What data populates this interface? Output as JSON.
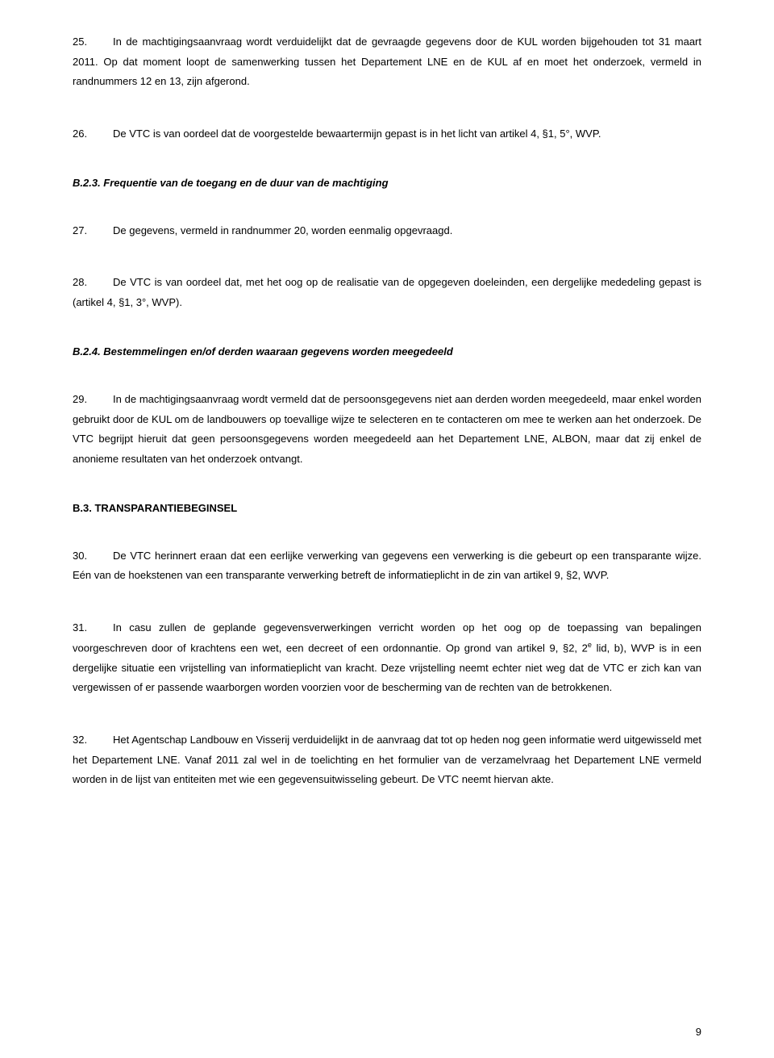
{
  "para25": {
    "num": "25.",
    "text": "In de machtigingsaanvraag wordt verduidelijkt dat de gevraagde gegevens door de KUL worden bijgehouden tot 31 maart 2011. Op dat moment loopt de samenwerking tussen het Departement LNE en de KUL af en moet het onderzoek, vermeld in randnummers 12 en 13, zijn afgerond."
  },
  "para26": {
    "num": "26.",
    "text": "De VTC is van oordeel dat de voorgestelde bewaartermijn gepast is in het licht van artikel 4, §1, 5°, WVP."
  },
  "headingB23": "B.2.3. Frequentie van de toegang en de duur van de machtiging",
  "para27": {
    "num": "27.",
    "text": "De gegevens, vermeld in randnummer 20, worden eenmalig opgevraagd."
  },
  "para28": {
    "num": "28.",
    "text": "De VTC is van oordeel dat, met het oog op de realisatie van de opgegeven doeleinden, een dergelijke mededeling gepast is (artikel 4, §1, 3°, WVP)."
  },
  "headingB24": "B.2.4. Bestemmelingen en/of derden waaraan gegevens worden meegedeeld",
  "para29": {
    "num": "29.",
    "text": "In de machtigingsaanvraag wordt vermeld dat de persoonsgegevens niet aan derden worden meegedeeld, maar enkel worden gebruikt door de KUL om de landbouwers op toevallige wijze te selecteren en te contacteren om mee te werken aan het onderzoek. De VTC begrijpt hieruit dat geen persoonsgegevens worden meegedeeld aan het Departement LNE, ALBON, maar dat zij enkel de anonieme resultaten van het onderzoek ontvangt."
  },
  "headingB3": "B.3. TRANSPARANTIEBEGINSEL",
  "para30": {
    "num": "30.",
    "text": "De VTC herinnert eraan dat een eerlijke verwerking van gegevens een verwerking is die gebeurt op een transparante wijze. Eén van de hoekstenen van een transparante verwerking betreft de informatieplicht in de zin van artikel 9, §2, WVP."
  },
  "para31": {
    "num": "31.",
    "text1": "In casu zullen de geplande gegevensverwerkingen verricht worden op het oog op de toepassing van bepalingen voorgeschreven door of krachtens een wet, een decreet of een ordonnantie. Op grond van artikel 9, §2, 2",
    "sup": "e",
    "text2": " lid, b), WVP is in een dergelijke situatie een vrijstelling van informatieplicht van kracht. Deze vrijstelling neemt echter niet weg dat de VTC er zich kan van vergewissen of er passende waarborgen worden voorzien voor de bescherming van de rechten van de betrokkenen."
  },
  "para32": {
    "num": "32.",
    "text": "Het Agentschap Landbouw en Visserij verduidelijkt in de aanvraag dat tot op heden nog geen informatie werd uitgewisseld met het Departement LNE. Vanaf 2011 zal wel in de toelichting en het formulier van de verzamelvraag het Departement LNE vermeld worden in de lijst van entiteiten met wie een gegevensuitwisseling gebeurt. De VTC neemt hiervan akte."
  },
  "pageNumber": "9"
}
